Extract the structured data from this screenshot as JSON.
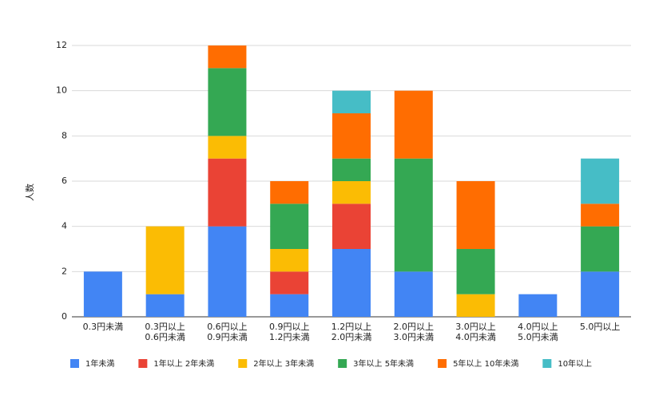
{
  "chart_data": {
    "type": "bar",
    "stacked": true,
    "ylabel": "人数",
    "ylim": [
      0,
      12
    ],
    "yticks": [
      0,
      2,
      4,
      6,
      8,
      10,
      12
    ],
    "grid": true,
    "legend_position": "bottom",
    "categories": [
      [
        "0.3円未満"
      ],
      [
        "0.3円以上",
        "0.6円未満"
      ],
      [
        "0.6円以上",
        "0.9円未満"
      ],
      [
        "0.9円以上",
        "1.2円未満"
      ],
      [
        "1.2円以上",
        "2.0円未満"
      ],
      [
        "2.0円以上",
        "3.0円未満"
      ],
      [
        "3.0円以上",
        "4.0円未満"
      ],
      [
        "4.0円以上",
        "5.0円未満"
      ],
      [
        "5.0円以上"
      ]
    ],
    "series": [
      {
        "name": "1年未満",
        "color": "#4285f4",
        "values": [
          2,
          1,
          4,
          1,
          3,
          2,
          0,
          1,
          2
        ]
      },
      {
        "name": "1年以上 2年未満",
        "color": "#ea4335",
        "values": [
          0,
          0,
          3,
          1,
          2,
          0,
          0,
          0,
          0
        ]
      },
      {
        "name": "2年以上 3年未満",
        "color": "#fbbc04",
        "values": [
          0,
          3,
          1,
          1,
          1,
          0,
          1,
          0,
          0
        ]
      },
      {
        "name": "3年以上 5年未満",
        "color": "#34a853",
        "values": [
          0,
          0,
          3,
          2,
          1,
          5,
          2,
          0,
          2
        ]
      },
      {
        "name": "5年以上 10年未満",
        "color": "#ff6d01",
        "values": [
          0,
          0,
          1,
          1,
          2,
          3,
          3,
          0,
          1
        ]
      },
      {
        "name": "10年以上",
        "color": "#46bdc6",
        "values": [
          0,
          0,
          0,
          0,
          1,
          0,
          0,
          0,
          2
        ]
      }
    ]
  }
}
